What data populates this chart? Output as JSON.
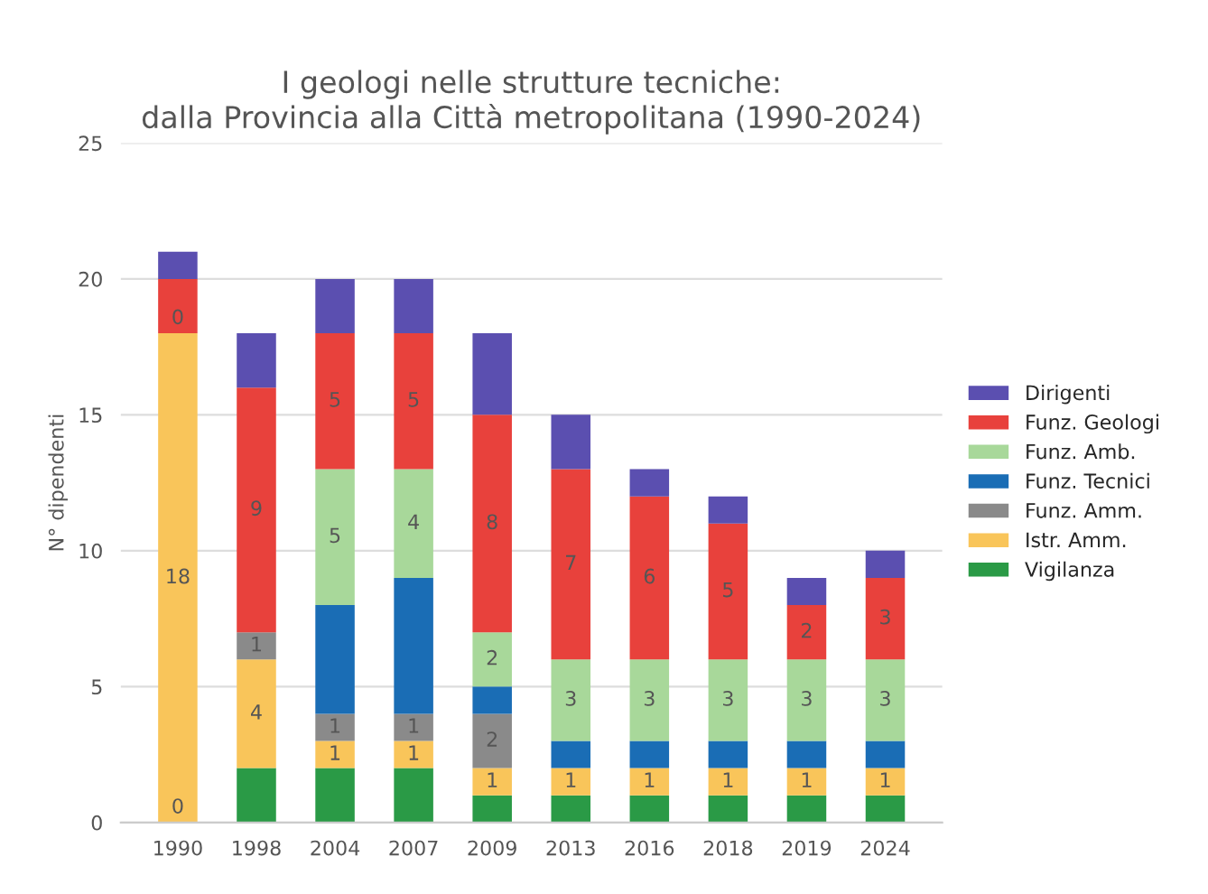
{
  "chart_data": {
    "type": "bar",
    "stacked": true,
    "title": "I geologi nelle strutture tecniche:\ndalla Provincia alla Città metropolitana (1990-2024)",
    "ylabel": "N° dipendenti",
    "categories": [
      "1990",
      "1998",
      "2004",
      "2007",
      "2009",
      "2013",
      "2016",
      "2018",
      "2019",
      "2024"
    ],
    "series": [
      {
        "name": "Vigilanza",
        "color": "#2a9a46",
        "values": [
          0,
          2,
          2,
          2,
          1,
          1,
          1,
          1,
          1,
          1
        ]
      },
      {
        "name": "Istr. Amm.",
        "color": "#f9c55a",
        "values": [
          18,
          4,
          1,
          1,
          1,
          1,
          1,
          1,
          1,
          1
        ],
        "value_labels": [
          "18",
          "4",
          "1",
          "1",
          "1",
          "1",
          "1",
          "1",
          "1",
          "1"
        ]
      },
      {
        "name": "Funz. Amm.",
        "color": "#8a8a8a",
        "values": [
          0,
          1,
          1,
          1,
          2,
          0,
          0,
          0,
          0,
          0
        ],
        "value_labels": [
          null,
          "1",
          "1",
          "1",
          "2",
          null,
          null,
          null,
          null,
          null
        ]
      },
      {
        "name": "Funz. Tecnici",
        "color": "#1a6db5",
        "values": [
          0,
          0,
          4,
          5,
          1,
          1,
          1,
          1,
          1,
          1
        ]
      },
      {
        "name": "Funz. Amb.",
        "color": "#a8d89a",
        "values": [
          0,
          0,
          5,
          4,
          2,
          3,
          3,
          3,
          3,
          3
        ],
        "value_labels": [
          null,
          null,
          "5",
          "4",
          "2",
          "3",
          "3",
          "3",
          "3",
          "3"
        ]
      },
      {
        "name": "Funz. Geologi",
        "color": "#e8413c",
        "values": [
          2,
          9,
          5,
          5,
          8,
          7,
          6,
          5,
          2,
          3
        ],
        "value_labels": [
          null,
          "9",
          "5",
          "5",
          "8",
          "7",
          "6",
          "5",
          "2",
          "3"
        ]
      },
      {
        "name": "Dirigenti",
        "color": "#5b4fb0",
        "values": [
          1,
          2,
          2,
          2,
          3,
          2,
          1,
          1,
          1,
          1
        ]
      }
    ],
    "annotations": [
      {
        "text": "0",
        "x": "1990",
        "y": 0
      },
      {
        "text": "0",
        "x": "1990",
        "y": 18
      }
    ],
    "ylim": [
      0,
      25
    ],
    "yticks": [
      0,
      5,
      10,
      15,
      20,
      25
    ],
    "grid": "y",
    "legend": "right"
  }
}
